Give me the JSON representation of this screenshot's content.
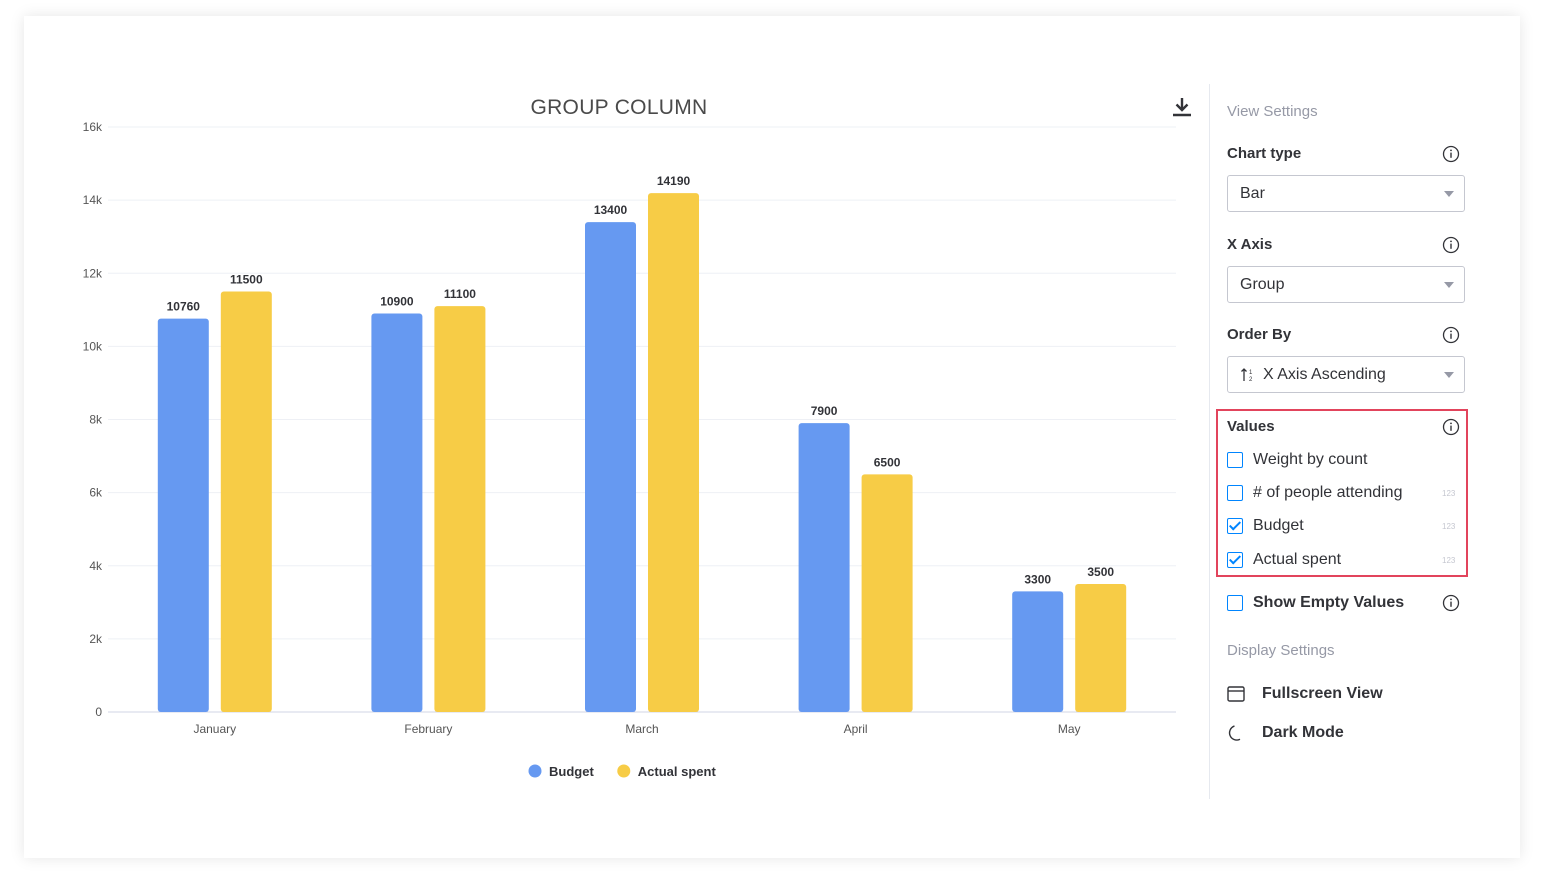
{
  "chart_data": {
    "type": "bar",
    "title": "GROUP COLUMN",
    "categories": [
      "January",
      "February",
      "March",
      "April",
      "May"
    ],
    "series": [
      {
        "name": "Budget",
        "color": "#6699f1",
        "values": [
          10760,
          10900,
          13400,
          7900,
          3300
        ]
      },
      {
        "name": "Actual spent",
        "color": "#f7cc46",
        "values": [
          11500,
          11100,
          14190,
          6500,
          3500
        ]
      }
    ],
    "ylim": [
      0,
      16000
    ],
    "yticks": [
      0,
      2000,
      4000,
      6000,
      8000,
      10000,
      12000,
      14000,
      16000
    ],
    "ytick_labels": [
      "0",
      "2k",
      "4k",
      "6k",
      "8k",
      "10k",
      "12k",
      "14k",
      "16k"
    ],
    "grid": true,
    "legend": "bottom-center",
    "xlabel": "",
    "ylabel": ""
  },
  "toolbar": {
    "download_icon": "download-icon"
  },
  "panel": {
    "view_settings_title": "View Settings",
    "chart_type": {
      "label": "Chart type",
      "value": "Bar"
    },
    "x_axis": {
      "label": "X Axis",
      "value": "Group"
    },
    "order_by": {
      "label": "Order By",
      "value": "X Axis Ascending"
    },
    "values": {
      "label": "Values",
      "highlight_color": "#e2445c",
      "items": [
        {
          "label": "Weight by count",
          "checked": false,
          "badge": ""
        },
        {
          "label": "# of people attending",
          "checked": false,
          "badge": "123"
        },
        {
          "label": "Budget",
          "checked": true,
          "badge": "123"
        },
        {
          "label": "Actual spent",
          "checked": true,
          "badge": "123"
        }
      ]
    },
    "show_empty": {
      "label": "Show Empty Values",
      "checked": false
    },
    "display_settings_title": "Display Settings",
    "fullscreen_label": "Fullscreen View",
    "dark_mode_label": "Dark Mode"
  }
}
